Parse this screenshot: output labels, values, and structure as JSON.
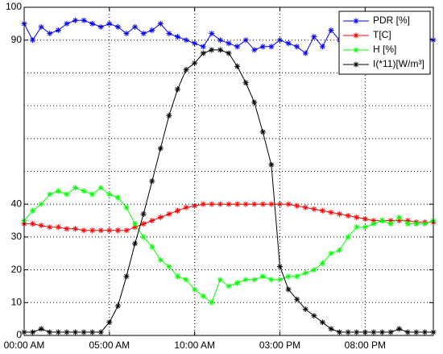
{
  "chart_data": {
    "type": "line",
    "title": "",
    "xlabel": "",
    "ylabel": "",
    "xlim": [
      0,
      24
    ],
    "ylim": [
      0,
      100
    ],
    "grid": true,
    "legend_position": "top-right",
    "x_ticks": [
      {
        "value": 0,
        "label": "00:00 AM"
      },
      {
        "value": 5,
        "label": "05:00 AM"
      },
      {
        "value": 10,
        "label": "10:00 AM"
      },
      {
        "value": 15,
        "label": "03:00 PM"
      },
      {
        "value": 20,
        "label": "08:00 PM"
      }
    ],
    "y_ticks": [
      {
        "value": 0,
        "label": "0"
      },
      {
        "value": 10,
        "label": "10"
      },
      {
        "value": 20,
        "label": "20"
      },
      {
        "value": 30,
        "label": "30"
      },
      {
        "value": 40,
        "label": "40"
      },
      {
        "value": 90,
        "label": "90"
      },
      {
        "value": 100,
        "label": "100"
      }
    ],
    "y_grid_values": [
      10,
      20,
      30,
      40,
      50,
      60,
      70,
      80,
      90
    ],
    "x_grid_values": [
      5,
      10,
      15,
      20
    ],
    "x": [
      0,
      0.5,
      1,
      1.5,
      2,
      2.5,
      3,
      3.5,
      4,
      4.5,
      5,
      5.5,
      6,
      6.5,
      7,
      7.5,
      8,
      8.5,
      9,
      9.5,
      10,
      10.5,
      11,
      11.5,
      12,
      12.5,
      13,
      13.5,
      14,
      14.5,
      15,
      15.5,
      16,
      16.5,
      17,
      17.5,
      18,
      18.5,
      19,
      19.5,
      20,
      20.5,
      21,
      21.5,
      22,
      22.5,
      23,
      23.5,
      24
    ],
    "series": [
      {
        "name": "PDR [%]",
        "color": "#0000ff",
        "values": [
          95,
          90,
          94,
          92,
          93,
          95,
          96,
          96,
          95,
          94,
          95,
          94,
          92,
          94,
          92,
          93,
          95,
          92,
          91,
          90,
          89,
          88,
          92,
          90,
          89,
          88,
          90,
          87,
          88,
          88,
          90,
          89,
          88,
          86,
          91,
          88,
          93,
          90,
          90,
          89,
          90,
          88,
          91,
          89,
          88,
          90,
          89,
          91,
          90
        ]
      },
      {
        "name": "T[C]",
        "color": "#ff0000",
        "values": [
          34,
          34,
          33.5,
          33,
          33,
          32.5,
          32.5,
          32,
          32,
          32,
          32,
          32,
          32,
          33,
          34,
          35,
          36,
          37,
          38,
          39,
          39.5,
          40,
          40,
          40,
          40,
          40,
          40,
          40,
          40,
          40,
          40,
          40,
          39.5,
          39,
          38.5,
          38,
          37.5,
          37,
          36.5,
          36,
          35.5,
          35,
          35,
          35,
          35,
          35,
          34.5,
          34.5,
          34.5
        ]
      },
      {
        "name": "H [%]",
        "color": "#00ff00",
        "values": [
          35,
          38,
          40,
          43,
          44,
          43,
          45,
          44,
          43,
          45,
          43,
          42,
          39,
          34,
          30,
          27,
          23,
          21,
          18,
          17,
          14,
          12,
          10,
          17,
          15,
          16,
          17,
          17,
          18,
          17,
          17,
          18,
          18,
          19,
          20,
          22,
          25,
          26,
          30,
          33,
          33,
          34,
          35,
          34,
          36,
          34,
          34,
          34,
          35
        ]
      },
      {
        "name": "I(*11)[W/m³]",
        "color": "#000000",
        "values": [
          1,
          1,
          2,
          1,
          1,
          1,
          1,
          1,
          1,
          1,
          4,
          9,
          18,
          28,
          37,
          47,
          57,
          67,
          75,
          81,
          83,
          86,
          87,
          87,
          86,
          82,
          77,
          71,
          62,
          52,
          21,
          14,
          11,
          8,
          6,
          4,
          2,
          1,
          1,
          1,
          1,
          1,
          1,
          1,
          2,
          1,
          1,
          1,
          1
        ]
      }
    ]
  }
}
